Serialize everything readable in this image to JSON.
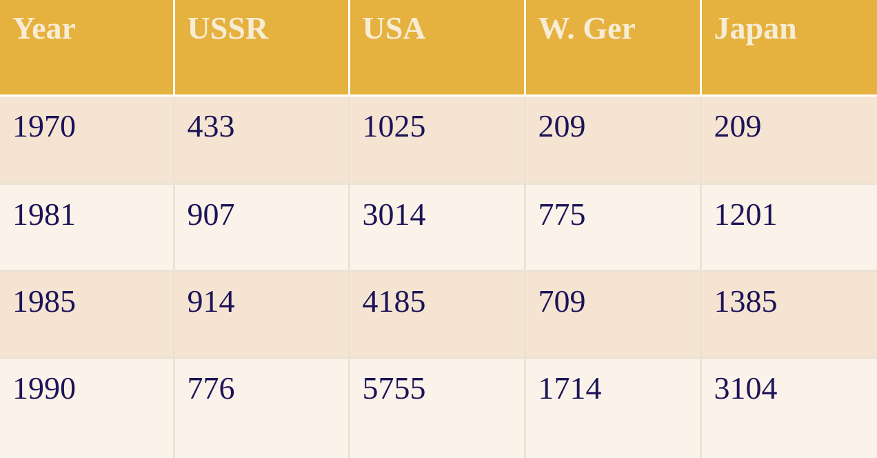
{
  "table": {
    "headers": [
      "Year",
      "USSR",
      "USA",
      "W. Ger",
      "Japan"
    ],
    "rows": [
      [
        "1970",
        "433",
        "1025",
        "209",
        "209"
      ],
      [
        "1981",
        "907",
        "3014",
        "775",
        "1201"
      ],
      [
        "1985",
        "914",
        "4185",
        "709",
        "1385"
      ],
      [
        "1990",
        "776",
        "5755",
        "1714",
        "3104"
      ]
    ]
  },
  "colors": {
    "header_bg": "#e5b13f",
    "header_text": "#f8ecd4",
    "row_band": "#f5e4d2",
    "row_alt": "#fbf3e9",
    "body_text": "#1c1358"
  }
}
